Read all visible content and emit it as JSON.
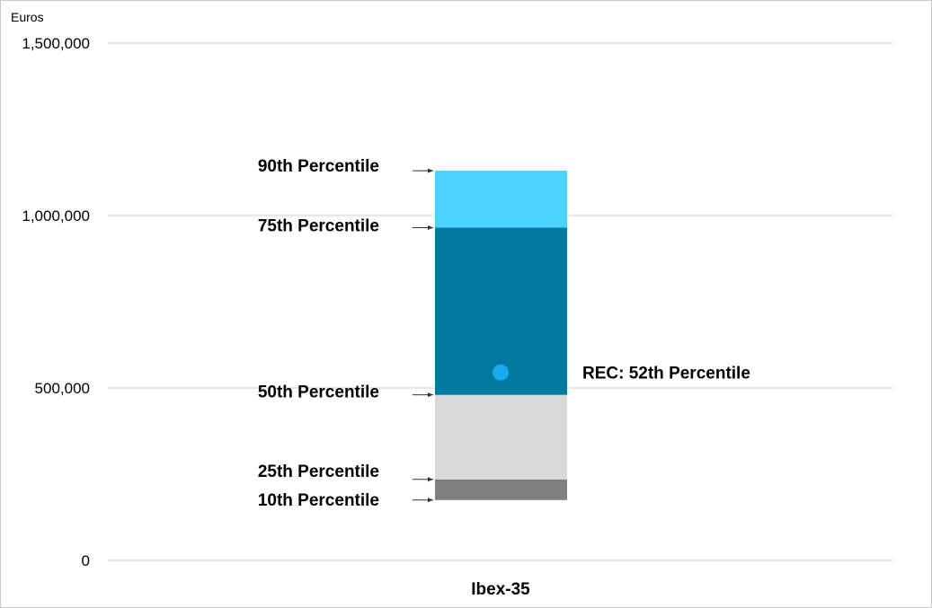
{
  "chart_data": {
    "type": "bar",
    "ylabel": "Euros",
    "ylim": [
      0,
      1500000
    ],
    "yticks": [
      {
        "value": 0,
        "label": "0"
      },
      {
        "value": 500000,
        "label": "500,000"
      },
      {
        "value": 1000000,
        "label": "1,000,000"
      },
      {
        "value": 1500000,
        "label": "1,500,000"
      }
    ],
    "grid": true,
    "categories": [
      "Ibex-35"
    ],
    "percentiles": [
      {
        "name": "10th Percentile",
        "value": 175000
      },
      {
        "name": "25th Percentile",
        "value": 235000
      },
      {
        "name": "50th Percentile",
        "value": 480000
      },
      {
        "name": "75th Percentile",
        "value": 965000
      },
      {
        "name": "90th Percentile",
        "value": 1130000
      }
    ],
    "bands": [
      {
        "from": 175000,
        "to": 235000,
        "color": "#808080"
      },
      {
        "from": 235000,
        "to": 480000,
        "color": "#d9d9d9"
      },
      {
        "from": 480000,
        "to": 965000,
        "color": "#00799e"
      },
      {
        "from": 965000,
        "to": 1130000,
        "color": "#4dd2ff"
      }
    ],
    "marker": {
      "label": "REC: 52th Percentile",
      "value": 545000,
      "color": "#1aa9f0"
    }
  }
}
